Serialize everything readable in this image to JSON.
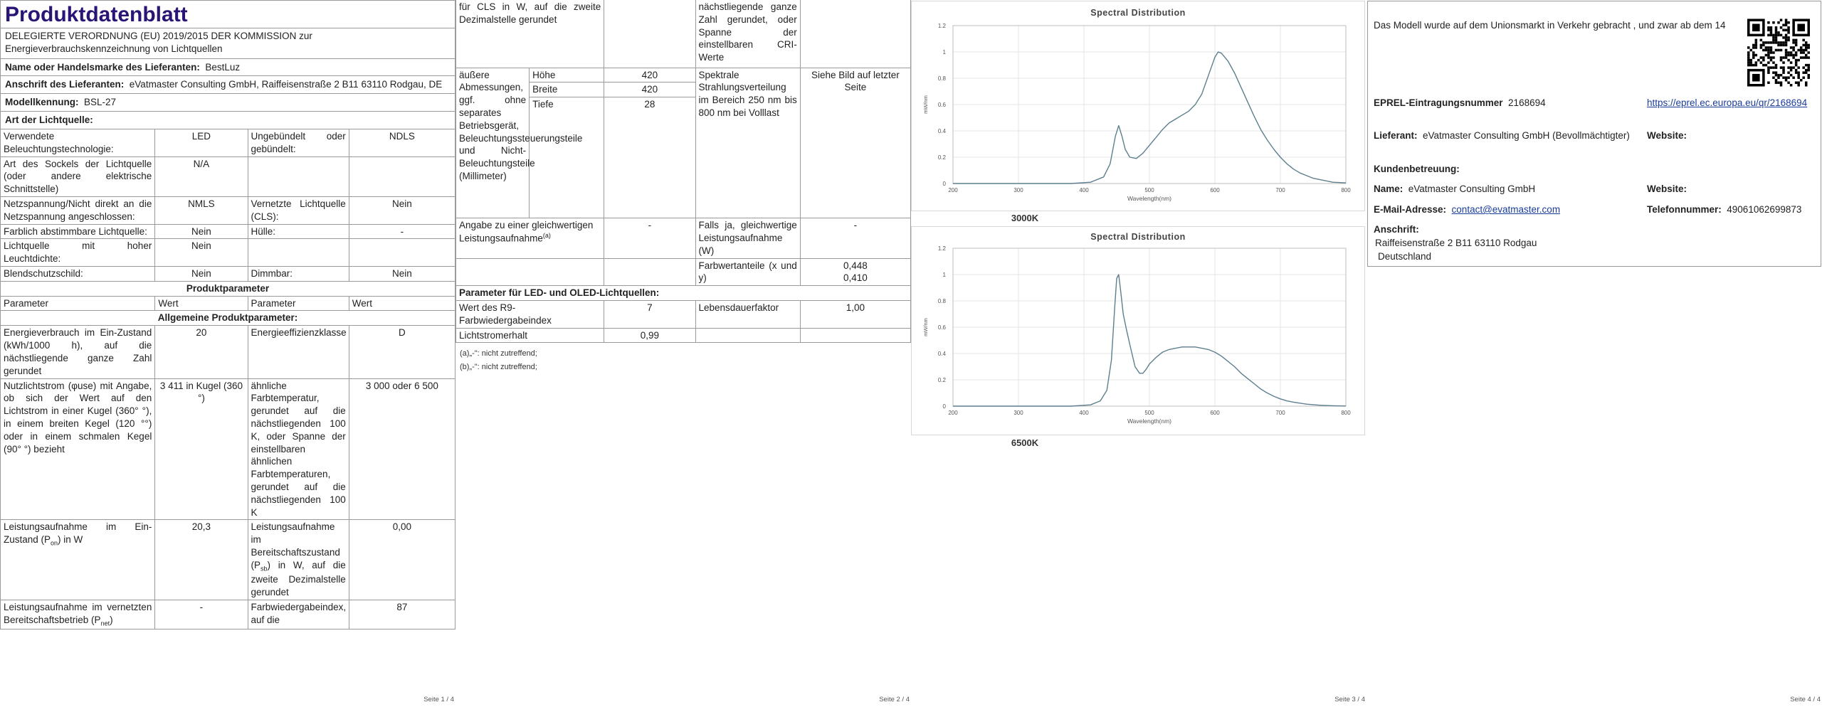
{
  "pages": [
    "Seite 1 / 4",
    "Seite 2 / 4",
    "Seite 3 / 4",
    "Seite 4 / 4"
  ],
  "p1": {
    "title": "Produktdatenblatt",
    "subtitle": "DELEGIERTE VERORDNUNG (EU) 2019/2015 DER KOMMISSION zur Energieverbrauchskennzeichnung von Lichtquellen",
    "brand_label": "Name oder Handelsmarke des Lieferanten:",
    "brand_value": "BestLuz",
    "address_label": "Anschrift des Lieferanten:",
    "address_value": "eVatmaster Consulting GmbH, Raiffeisenstraße 2 B11 63110 Rodgau, DE",
    "model_label": "Modellkennung:",
    "model_value": "BSL-27",
    "type_heading": "Art der Lichtquelle:",
    "rows": [
      [
        "Verwendete Beleuchtungstechnologie:",
        "LED",
        "Ungebündelt oder gebündelt:",
        "NDLS"
      ],
      [
        "Art des Sockels der Lichtquelle (oder andere elektrische Schnittstelle)",
        "N/A",
        "",
        ""
      ],
      [
        "Netzspannung/Nicht direkt an die Netzspannung angeschlossen:",
        "NMLS",
        "Vernetzte Lichtquelle (CLS):",
        "Nein"
      ],
      [
        "Farblich abstimmbare Lichtquelle:",
        "Nein",
        "Hülle:",
        "-"
      ],
      [
        "Lichtquelle mit hoher Leuchtdichte:",
        "Nein",
        "",
        ""
      ],
      [
        "Blendschutzschild:",
        "Nein",
        "Dimmbar:",
        "Nein"
      ]
    ],
    "params_heading": "Produktparameter",
    "col_param": "Parameter",
    "col_value": "Wert",
    "general_heading": "Allgemeine Produktparameter:",
    "g1_l": "Energieverbrauch im Ein-Zustand (kWh/1000 h), auf die nächstliegende ganze Zahl gerundet",
    "g1_v": "20",
    "g1_r": "Energieeffizienzklasse",
    "g1_rv": "D",
    "g2_l": "Nutzlichtstrom (φuse) mit Angabe, ob sich der Wert auf den Lichtstrom in einer Kugel (360° °), in einem breiten Kegel (120 °°) oder in einem schmalen Kegel (90° °) bezieht",
    "g2_v": "3 411 in Kugel (360 °)",
    "g2_r": "ähnliche Farbtemperatur, gerundet auf die nächstliegenden 100 K, oder Spanne der einstellbaren ähnlichen Farbtemperaturen, gerundet auf die nächstliegenden 100 K",
    "g2_rv": "3 000 oder 6 500",
    "g3_l": "Leistungsaufnahme im Ein-Zustand (P",
    "g3_l_sub": "on",
    "g3_l_end": ") in W",
    "g3_v": "20,3",
    "g3_r": "Leistungsaufnahme im Bereitschaftszustand (P",
    "g3_r_sub": "sb",
    "g3_r_end": ") in W, auf die zweite Dezimalstelle gerundet",
    "g3_rv": "0,00",
    "g4_l": "Leistungsaufnahme im vernetzten Bereitschaftsbetrieb (P",
    "g4_l_sub": "net",
    "g4_l_end": ")",
    "g4_v": "-",
    "g4_r": "Farbwiedergabeindex, auf die",
    "g4_rv": "87"
  },
  "p2": {
    "cont_left": "für CLS in W, auf die zweite Dezimalstelle gerundet",
    "cont_right": "nächstliegende ganze Zahl gerundet, oder Spanne der einstellbaren CRI-Werte",
    "dim_label": "äußere Abmessungen, ggf. ohne separates Betriebsgerät, Beleuchtungssteuerungsteile und Nicht-Beleuchtungsteile (Millimeter)",
    "dims": [
      [
        "Höhe",
        "420"
      ],
      [
        "Breite",
        "420"
      ],
      [
        "Tiefe",
        "28"
      ]
    ],
    "spd_label": "Spektrale Strahlungsverteilung im Bereich 250 nm bis 800 nm bei Volllast",
    "spd_value": "Siehe Bild auf letzter Seite",
    "eq_label": "Angabe zu einer gleichwertigen Leistungsaufnahme",
    "eq_sup": "(a)",
    "eq_value": "-",
    "eqw_label": "Falls ja, gleichwertige Leistungsaufnahme (W)",
    "eqw_value": "-",
    "chroma_label": "Farbwertanteile (x und y)",
    "chroma_value": "0,448\n0,410",
    "led_heading": "Parameter für LED- und OLED-Lichtquellen:",
    "r9_label": "Wert des R9-Farbwiedergabeindex",
    "r9_value": "7",
    "life_label": "Lebensdauerfaktor",
    "life_value": "1,00",
    "flux_label": "Lichtstromerhalt",
    "flux_value": "0,99",
    "note_a": "(a)„-\": nicht zutreffend;",
    "note_b": "(b)„-\": nicht zutreffend;"
  },
  "p3": {
    "chart_titles": [
      "Spectral Distribution",
      "Spectral Distribution"
    ],
    "chart_labels": [
      "3000K",
      "6500K"
    ]
  },
  "p4": {
    "intro": "Das Modell wurde auf dem Unionsmarkt in Verkehr gebracht , und zwar ab dem 14",
    "eprel_label": "EPREL-Eintragungsnummer",
    "eprel_value": "2168694",
    "eprel_link": "https://eprel.ec.europa.eu/qr/2168694",
    "supplier_label": "Lieferant:",
    "supplier_value": "eVatmaster Consulting GmbH (Bevollmächtigter)",
    "website_label": "Website:",
    "support_heading": "Kundenbetreuung:",
    "name_label": "Name:",
    "name_value": "eVatmaster Consulting GmbH",
    "website_label2": "Website:",
    "email_label": "E-Mail-Adresse:",
    "email_value": "contact@evatmaster.com",
    "phone_label": "Telefonnummer:",
    "phone_value": "49061062699873",
    "addr_label": "Anschrift:",
    "addr_line1": "Raiffeisenstraße 2 B11 63110 Rodgau",
    "addr_line2": "Deutschland",
    "qr_icon": "qr-code-icon"
  },
  "chart_data": [
    {
      "type": "line",
      "title": "Spectral Distribution",
      "xlabel": "Wavelength(nm)",
      "ylabel": "mW/nm",
      "xlim": [
        200,
        800
      ],
      "ylim": [
        0,
        1.2
      ],
      "xticks": [
        200,
        300,
        400,
        500,
        600,
        700,
        800
      ],
      "yticks": [
        0,
        0.2,
        0.4,
        0.6,
        0.8,
        1,
        1.2
      ],
      "grid": true,
      "color": "#5d7f8f",
      "caption": "3000K",
      "x": [
        200,
        380,
        410,
        430,
        440,
        448,
        453,
        458,
        463,
        470,
        480,
        490,
        500,
        510,
        520,
        530,
        540,
        550,
        560,
        570,
        580,
        590,
        600,
        605,
        610,
        620,
        630,
        640,
        650,
        660,
        670,
        680,
        690,
        700,
        710,
        720,
        730,
        740,
        750,
        760,
        780,
        800
      ],
      "y": [
        0,
        0,
        0.01,
        0.05,
        0.15,
        0.36,
        0.44,
        0.36,
        0.26,
        0.2,
        0.19,
        0.23,
        0.29,
        0.35,
        0.41,
        0.46,
        0.49,
        0.52,
        0.55,
        0.6,
        0.68,
        0.82,
        0.96,
        1.0,
        0.99,
        0.93,
        0.84,
        0.73,
        0.62,
        0.51,
        0.41,
        0.33,
        0.26,
        0.2,
        0.15,
        0.11,
        0.08,
        0.06,
        0.04,
        0.03,
        0.01,
        0.005
      ]
    },
    {
      "type": "line",
      "title": "Spectral Distribution",
      "xlabel": "Wavelength(nm)",
      "ylabel": "mW/nm",
      "xlim": [
        200,
        800
      ],
      "ylim": [
        0,
        1.2
      ],
      "xticks": [
        200,
        300,
        400,
        500,
        600,
        700,
        800
      ],
      "yticks": [
        0,
        0.2,
        0.4,
        0.6,
        0.8,
        1,
        1.2
      ],
      "grid": true,
      "color": "#5d7f8f",
      "caption": "6500K",
      "x": [
        200,
        380,
        410,
        425,
        435,
        442,
        447,
        450,
        453,
        456,
        460,
        465,
        470,
        478,
        485,
        490,
        495,
        500,
        510,
        520,
        530,
        540,
        550,
        560,
        570,
        580,
        590,
        600,
        610,
        620,
        630,
        640,
        650,
        660,
        670,
        680,
        690,
        700,
        710,
        720,
        740,
        760,
        780,
        800
      ],
      "y": [
        0,
        0,
        0.01,
        0.04,
        0.12,
        0.35,
        0.75,
        0.97,
        1.0,
        0.88,
        0.7,
        0.58,
        0.47,
        0.3,
        0.25,
        0.25,
        0.28,
        0.32,
        0.37,
        0.41,
        0.43,
        0.44,
        0.45,
        0.45,
        0.45,
        0.44,
        0.43,
        0.41,
        0.38,
        0.34,
        0.3,
        0.25,
        0.21,
        0.17,
        0.13,
        0.1,
        0.075,
        0.055,
        0.04,
        0.03,
        0.015,
        0.007,
        0.003,
        0.001
      ]
    }
  ]
}
